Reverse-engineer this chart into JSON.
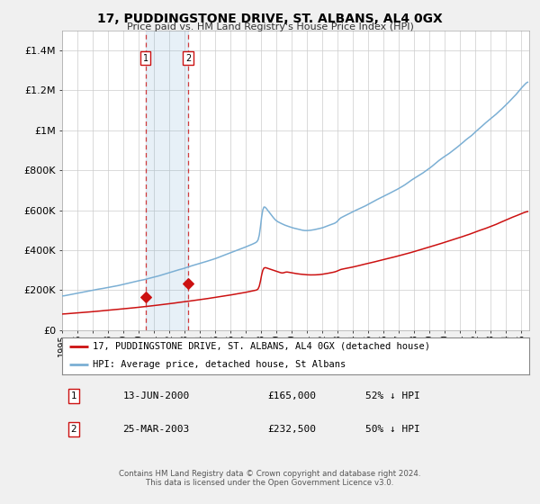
{
  "title": "17, PUDDINGSTONE DRIVE, ST. ALBANS, AL4 0GX",
  "subtitle": "Price paid vs. HM Land Registry's House Price Index (HPI)",
  "legend_line1": "17, PUDDINGSTONE DRIVE, ST. ALBANS, AL4 0GX (detached house)",
  "legend_line2": "HPI: Average price, detached house, St Albans",
  "footer1": "Contains HM Land Registry data © Crown copyright and database right 2024.",
  "footer2": "This data is licensed under the Open Government Licence v3.0.",
  "hpi_color": "#7bafd4",
  "price_color": "#cc1111",
  "background_color": "#f0f0f0",
  "plot_bg_color": "#ffffff",
  "grid_color": "#cccccc",
  "sale1_date": 2000.45,
  "sale1_price": 165000,
  "sale1_label": "1",
  "sale1_text": "13-JUN-2000",
  "sale1_amount": "£165,000",
  "sale1_pct": "52% ↓ HPI",
  "sale2_date": 2003.23,
  "sale2_price": 232500,
  "sale2_label": "2",
  "sale2_text": "25-MAR-2003",
  "sale2_amount": "£232,500",
  "sale2_pct": "50% ↓ HPI",
  "xmin": 1995.0,
  "xmax": 2025.5,
  "ymin": 0,
  "ymax": 1500000,
  "yticks": [
    0,
    200000,
    400000,
    600000,
    800000,
    1000000,
    1200000,
    1400000
  ]
}
